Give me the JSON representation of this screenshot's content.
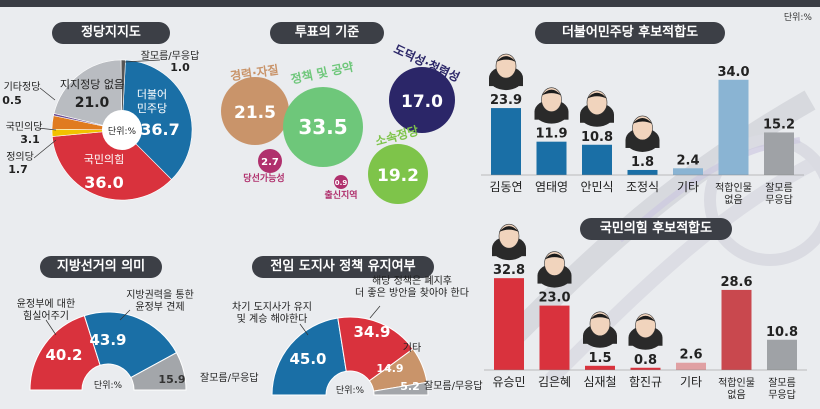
{
  "unit_top": "단위:%",
  "titles": {
    "party_support": "정당지지도",
    "vote_criteria": "투표의 기준",
    "democratic_candidates": "더불어민주당 후보적합도",
    "local_meaning": "지방선거의 의미",
    "policy_continuity": "전임 도지사 정책 유지여부",
    "ppp_candidates": "국민의힘 후보적합도"
  },
  "chart_data": [
    {
      "type": "pie",
      "id": "party_support",
      "title": "정당지지도",
      "center_label": "단위:%",
      "slices": [
        {
          "label": "더불어 민주당",
          "value": 36.7,
          "color": "#1a6fa6"
        },
        {
          "label": "국민의힘",
          "value": 36.0,
          "color": "#d9323d"
        },
        {
          "label": "정의당",
          "value": 1.7,
          "color": "#f2c200"
        },
        {
          "label": "국민의당",
          "value": 3.1,
          "color": "#e07b1f"
        },
        {
          "label": "기타정당",
          "value": 0.5,
          "color": "#6a4c93"
        },
        {
          "label": "지지정당 없음",
          "value": 21.0,
          "color": "#b9bcc1"
        },
        {
          "label": "잘모름/무응답",
          "value": 1.0,
          "color": "#555555"
        }
      ]
    },
    {
      "type": "bubble",
      "id": "vote_criteria",
      "title": "투표의 기준",
      "items": [
        {
          "label": "경력·자질",
          "value": 21.5,
          "color": "#c9946a"
        },
        {
          "label": "정책 및 공약",
          "value": 33.5,
          "color": "#6ec77a"
        },
        {
          "label": "도덕성·청렴성",
          "value": 17.0,
          "color": "#2b2668"
        },
        {
          "label": "소속정당",
          "value": 19.2,
          "color": "#7ec44a"
        },
        {
          "label": "당선가능성",
          "value": 2.7,
          "color": "#b0306d"
        },
        {
          "label": "출신지역",
          "value": 0.9,
          "color": "#b0306d"
        }
      ]
    },
    {
      "type": "bar",
      "id": "democratic_candidates",
      "title": "더불어민주당 후보적합도",
      "categories": [
        "김동연",
        "염태영",
        "안민식",
        "조정식",
        "기타",
        "적합인물 없음",
        "잘모름 무응답"
      ],
      "values": [
        23.9,
        11.9,
        10.8,
        1.8,
        2.4,
        34.0,
        15.2
      ],
      "colors": [
        "#1a6fa6",
        "#1a6fa6",
        "#1a6fa6",
        "#1a6fa6",
        "#8ab4d3",
        "#8ab4d3",
        "#9fa2a6"
      ],
      "ylim": [
        0,
        36
      ]
    },
    {
      "type": "semi-donut",
      "id": "local_meaning",
      "title": "지방선거의 의미",
      "center_label": "단위:%",
      "slices": [
        {
          "label": "윤정부에 대한 힘실어주기",
          "value": 40.2,
          "color": "#d9323d"
        },
        {
          "label": "지방권력을 통한 윤정부 견제",
          "value": 43.9,
          "color": "#1a6fa6"
        },
        {
          "label": "잘모름/무응답",
          "value": 15.9,
          "color": "#a3a6aa"
        }
      ]
    },
    {
      "type": "semi-donut",
      "id": "policy_continuity",
      "title": "전임 도지사 정책 유지여부",
      "center_label": "단위:%",
      "slices": [
        {
          "label": "차기 도지사가 유지 및 계승 해야한다",
          "value": 45.0,
          "color": "#1a6fa6"
        },
        {
          "label": "해당 정책은 폐지후 더 좋은 방안을 찾아야 한다",
          "value": 34.9,
          "color": "#d9323d"
        },
        {
          "label": "기타",
          "value": 14.9,
          "color": "#c9946a"
        },
        {
          "label": "잘모름/무응답",
          "value": 5.2,
          "color": "#a3a6aa"
        }
      ]
    },
    {
      "type": "bar",
      "id": "ppp_candidates",
      "title": "국민의힘 후보적합도",
      "categories": [
        "유승민",
        "김은혜",
        "심재철",
        "함진규",
        "기타",
        "적합인물 없음",
        "잘모름 무응답"
      ],
      "values": [
        32.8,
        23.0,
        1.5,
        0.8,
        2.6,
        28.6,
        10.8
      ],
      "colors": [
        "#d9323d",
        "#d9323d",
        "#d9323d",
        "#d9323d",
        "#e0a0a3",
        "#c9484e",
        "#9fa2a6"
      ],
      "ylim": [
        0,
        36
      ]
    }
  ]
}
